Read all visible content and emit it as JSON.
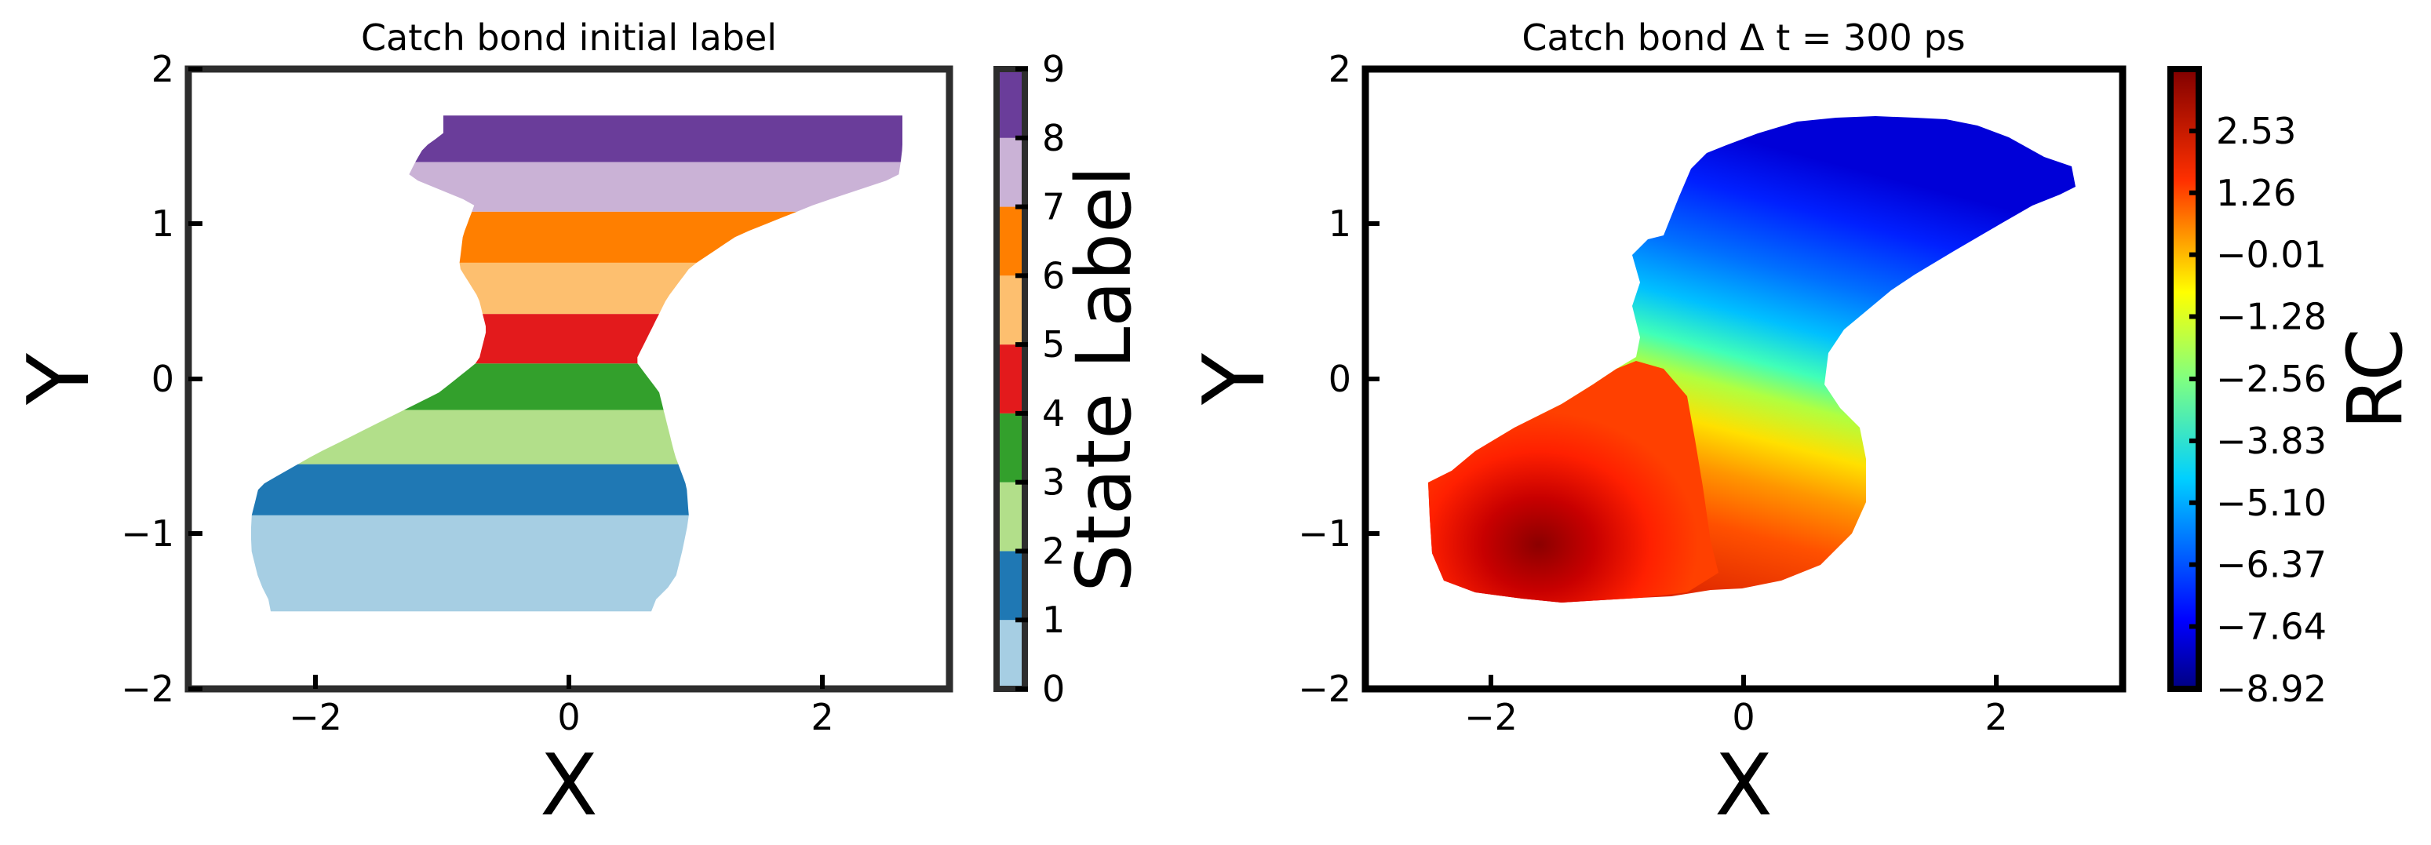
{
  "chart_data": [
    {
      "type": "heatmap",
      "title": "Catch bond initial label",
      "xlabel": "X",
      "ylabel": "Y",
      "xlim": [
        -3,
        3
      ],
      "ylim": [
        -2,
        2
      ],
      "xticks": [
        "−2",
        "0",
        "2"
      ],
      "yticks": [
        "−2",
        "−1",
        "0",
        "1",
        "2"
      ],
      "colorbar": {
        "label": "State Label",
        "ticks": [
          "0",
          "1",
          "2",
          "3",
          "4",
          "5",
          "6",
          "7",
          "8",
          "9"
        ],
        "range": [
          0,
          9
        ],
        "colors": [
          "#a6cee3",
          "#1f78b4",
          "#b2df8a",
          "#33a02c",
          "#e31a1c",
          "#fdbf6f",
          "#ff7f00",
          "#cab2d6",
          "#6a3d9a"
        ]
      },
      "bands": [
        {
          "state": 0,
          "y0": -1.5,
          "y1": -0.88,
          "color": "#a6cee3"
        },
        {
          "state": 1,
          "y0": -0.88,
          "y1": -0.55,
          "color": "#1f78b4"
        },
        {
          "state": 2,
          "y0": -0.55,
          "y1": -0.2,
          "color": "#b2df8a"
        },
        {
          "state": 3,
          "y0": -0.2,
          "y1": 0.1,
          "color": "#33a02c"
        },
        {
          "state": 4,
          "y0": 0.1,
          "y1": 0.42,
          "color": "#e31a1c"
        },
        {
          "state": 5,
          "y0": 0.42,
          "y1": 0.75,
          "color": "#fdbf6f"
        },
        {
          "state": 6,
          "y0": 0.75,
          "y1": 1.08,
          "color": "#ff7f00"
        },
        {
          "state": 7,
          "y0": 1.08,
          "y1": 1.4,
          "color": "#cab2d6"
        },
        {
          "state": 8,
          "y0": 1.4,
          "y1": 1.7,
          "color": "#6a3d9a"
        }
      ]
    },
    {
      "type": "heatmap",
      "title": "Catch bond Δ t = 300 ps",
      "xlabel": "X",
      "ylabel": "Y",
      "xlim": [
        -3,
        3
      ],
      "ylim": [
        -2,
        2
      ],
      "xticks": [
        "−2",
        "0",
        "2"
      ],
      "yticks": [
        "−2",
        "−1",
        "0",
        "1",
        "2"
      ],
      "colorbar": {
        "label": "RC",
        "ticks": [
          "2.53",
          "1.26",
          "−0.01",
          "−1.28",
          "−2.56",
          "−3.83",
          "−5.10",
          "−6.37",
          "−7.64",
          "−8.92"
        ],
        "range": [
          -8.92,
          3.8
        ],
        "colormap": "jet"
      }
    }
  ]
}
